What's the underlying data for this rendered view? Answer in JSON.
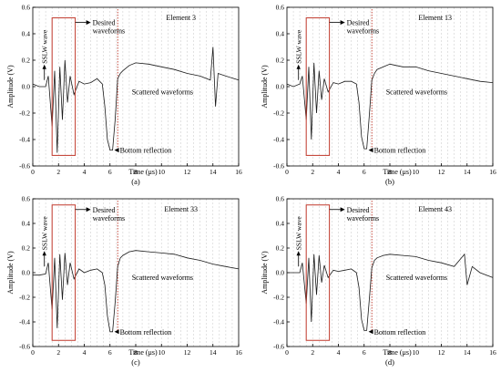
{
  "colors": {
    "signal": "#1a1a1a",
    "box": "#c0392b",
    "reflection_line": "#c0392b",
    "grid": "#d0d0d0",
    "axis": "#000000"
  },
  "annotations": {
    "desired": [
      "Desired",
      "waveforms"
    ],
    "sslw": "SSLW wave",
    "scattered": "Scattered waveforms",
    "bottom": "Bottom reflection"
  },
  "chart_data": [
    {
      "type": "line",
      "panel_label": "(a)",
      "element_label": "Element 3",
      "xlabel": "Time (μs)",
      "ylabel": "Amplitude (V)",
      "xlim": [
        0,
        16
      ],
      "ylim": [
        -0.6,
        0.6
      ],
      "xticks": [
        0,
        2,
        4,
        6,
        8,
        10,
        12,
        14,
        16
      ],
      "yticks": [
        -0.6,
        -0.4,
        -0.2,
        0.0,
        0.2,
        0.4,
        0.6
      ],
      "ytick_labels": [
        "-0.6",
        "-0.4",
        "-0.2",
        "0.0",
        "0.2",
        "0.4",
        "0.6"
      ],
      "grid": "vertical-dashed",
      "series": [
        {
          "x": [
            0,
            0.5,
            1.0,
            1.2,
            1.5,
            1.7,
            1.9,
            2.1,
            2.3,
            2.5,
            2.7,
            2.9,
            3.2,
            3.6,
            4.0,
            4.5,
            5.0,
            5.4,
            5.6,
            5.8,
            6.0,
            6.2,
            6.4,
            6.6,
            6.8,
            7.0,
            7.5,
            8.0,
            9.0,
            10.0,
            11.0,
            12.0,
            13.0,
            13.8,
            14.0,
            14.2,
            14.4,
            15.0,
            16.0
          ],
          "y": [
            0.02,
            0.0,
            0.0,
            0.08,
            -0.3,
            0.12,
            -0.5,
            0.15,
            -0.25,
            0.2,
            -0.12,
            0.08,
            -0.06,
            0.04,
            0.02,
            0.03,
            0.06,
            0.02,
            -0.15,
            -0.4,
            -0.48,
            -0.48,
            -0.25,
            0.06,
            0.1,
            0.12,
            0.16,
            0.18,
            0.17,
            0.15,
            0.13,
            0.1,
            0.08,
            0.05,
            0.3,
            -0.15,
            0.1,
            0.08,
            0.05
          ]
        }
      ],
      "box": {
        "x0": 1.5,
        "x1": 3.3,
        "y0": -0.52,
        "y1": 0.52
      },
      "reflection_time": 6.6
    },
    {
      "type": "line",
      "panel_label": "(b)",
      "element_label": "Element 13",
      "xlabel": "Time (μs)",
      "ylabel": "Amplitude (V)",
      "xlim": [
        0,
        16
      ],
      "ylim": [
        -0.6,
        0.6
      ],
      "xticks": [
        0,
        2,
        4,
        6,
        8,
        10,
        12,
        14,
        16
      ],
      "yticks": [
        -0.6,
        -0.4,
        -0.2,
        0.0,
        0.2,
        0.4,
        0.6
      ],
      "ytick_labels": [
        "-0.6",
        "-0.4",
        "-0.2",
        "0.0",
        "0.2",
        "0.4",
        "0.6"
      ],
      "grid": "vertical-dashed",
      "series": [
        {
          "x": [
            0,
            0.5,
            1.0,
            1.2,
            1.5,
            1.7,
            1.9,
            2.1,
            2.3,
            2.5,
            2.7,
            2.9,
            3.2,
            3.6,
            4.0,
            4.5,
            5.0,
            5.4,
            5.6,
            5.8,
            6.0,
            6.2,
            6.4,
            6.6,
            6.8,
            7.0,
            7.5,
            8.0,
            9.0,
            10.0,
            11.0,
            12.0,
            13.0,
            14.0,
            15.0,
            16.0
          ],
          "y": [
            0.02,
            0.0,
            0.02,
            0.08,
            -0.25,
            0.15,
            -0.4,
            0.18,
            -0.2,
            0.12,
            -0.1,
            0.06,
            -0.04,
            0.03,
            0.02,
            0.04,
            0.04,
            0.02,
            -0.12,
            -0.38,
            -0.47,
            -0.47,
            -0.22,
            0.05,
            0.1,
            0.13,
            0.15,
            0.17,
            0.15,
            0.15,
            0.12,
            0.1,
            0.08,
            0.06,
            0.04,
            0.03
          ]
        }
      ],
      "box": {
        "x0": 1.5,
        "x1": 3.3,
        "y0": -0.52,
        "y1": 0.52
      },
      "reflection_time": 6.6
    },
    {
      "type": "line",
      "panel_label": "(c)",
      "element_label": "Element 33",
      "xlabel": "Time (μs)",
      "ylabel": "Amplitude (V)",
      "xlim": [
        0,
        16
      ],
      "ylim": [
        -0.6,
        0.6
      ],
      "xticks": [
        0,
        2,
        4,
        6,
        8,
        10,
        12,
        14,
        16
      ],
      "yticks": [
        -0.6,
        -0.4,
        -0.2,
        0.0,
        0.2,
        0.4,
        0.6
      ],
      "ytick_labels": [
        "-0.6",
        "-0.4",
        "-0.2",
        "0.0",
        "0.2",
        "0.4",
        "0.6"
      ],
      "grid": "vertical-dashed",
      "series": [
        {
          "x": [
            0,
            0.5,
            1.0,
            1.2,
            1.5,
            1.7,
            1.9,
            2.1,
            2.3,
            2.5,
            2.7,
            2.9,
            3.2,
            3.6,
            4.0,
            4.5,
            5.0,
            5.4,
            5.6,
            5.8,
            6.0,
            6.2,
            6.4,
            6.6,
            6.8,
            7.0,
            7.5,
            8.0,
            9.0,
            10.0,
            11.0,
            12.0,
            13.0,
            14.0,
            15.0,
            16.0
          ],
          "y": [
            -0.02,
            -0.02,
            -0.01,
            0.08,
            -0.3,
            0.12,
            -0.45,
            0.15,
            -0.22,
            0.16,
            -0.1,
            0.08,
            -0.05,
            0.03,
            0.0,
            0.02,
            0.03,
            0.0,
            -0.1,
            -0.35,
            -0.48,
            -0.48,
            -0.24,
            0.05,
            0.12,
            0.14,
            0.17,
            0.18,
            0.17,
            0.16,
            0.15,
            0.12,
            0.1,
            0.07,
            0.05,
            0.03
          ]
        }
      ],
      "box": {
        "x0": 1.5,
        "x1": 3.3,
        "y0": -0.55,
        "y1": 0.55
      },
      "reflection_time": 6.6
    },
    {
      "type": "line",
      "panel_label": "(d)",
      "element_label": "Element 43",
      "xlabel": "Time (μs)",
      "ylabel": "Amplitude (V)",
      "xlim": [
        0,
        16
      ],
      "ylim": [
        -0.6,
        0.6
      ],
      "xticks": [
        0,
        2,
        4,
        6,
        8,
        10,
        12,
        14,
        16
      ],
      "yticks": [
        -0.6,
        -0.4,
        -0.2,
        0.0,
        0.2,
        0.4,
        0.6
      ],
      "ytick_labels": [
        "-0.6",
        "-0.4",
        "-0.2",
        "0.0",
        "0.2",
        "0.4",
        "0.6"
      ],
      "grid": "vertical-dashed",
      "series": [
        {
          "x": [
            0,
            0.5,
            1.0,
            1.2,
            1.5,
            1.7,
            1.9,
            2.1,
            2.3,
            2.5,
            2.7,
            2.9,
            3.2,
            3.6,
            4.0,
            4.5,
            5.0,
            5.4,
            5.6,
            5.8,
            6.0,
            6.2,
            6.4,
            6.6,
            6.8,
            7.0,
            7.5,
            8.0,
            9.0,
            10.0,
            11.0,
            12.0,
            13.0,
            13.8,
            14.0,
            14.4,
            15.0,
            16.0
          ],
          "y": [
            0.0,
            0.0,
            0.0,
            0.08,
            -0.25,
            0.12,
            -0.4,
            0.15,
            -0.18,
            0.14,
            -0.08,
            0.06,
            -0.04,
            0.02,
            0.01,
            0.02,
            0.03,
            0.0,
            -0.12,
            -0.38,
            -0.47,
            -0.47,
            -0.22,
            0.04,
            0.1,
            0.12,
            0.14,
            0.15,
            0.14,
            0.13,
            0.1,
            0.08,
            0.05,
            0.15,
            -0.1,
            0.05,
            0.0,
            -0.04
          ]
        }
      ],
      "box": {
        "x0": 1.5,
        "x1": 3.3,
        "y0": -0.55,
        "y1": 0.55
      },
      "reflection_time": 6.6
    }
  ]
}
